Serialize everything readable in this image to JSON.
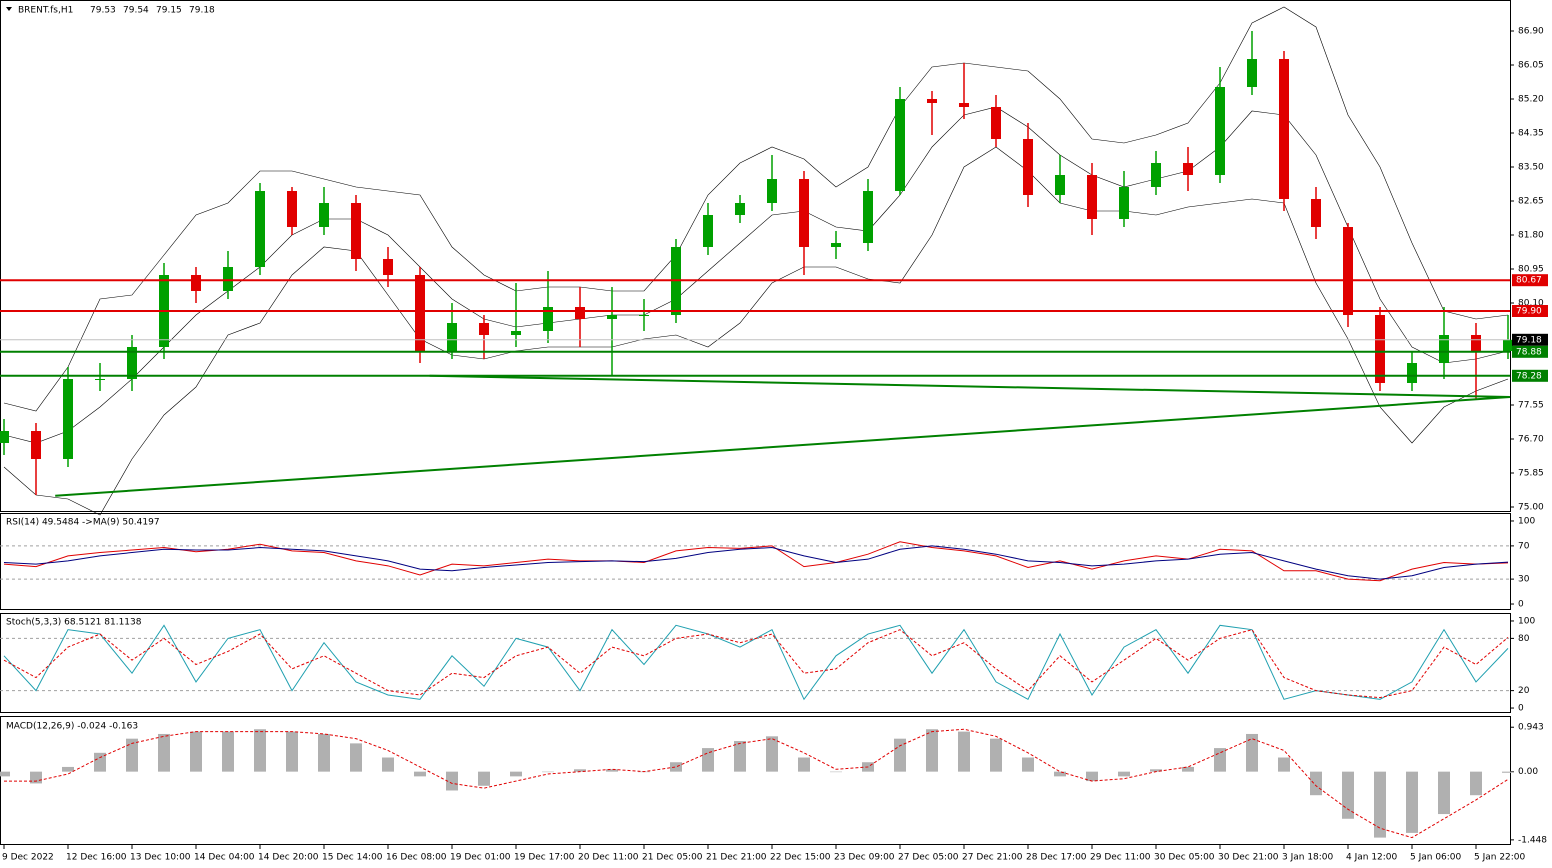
{
  "chart_data": [
    {
      "type": "candlestick",
      "title": "BRENT.fs,H1",
      "header_values": [
        79.53,
        79.54,
        79.15,
        79.18
      ],
      "categories": [
        "9 Dec 2022",
        null,
        "12 Dec 16:00",
        null,
        "13 Dec 10:00",
        null,
        "14 Dec 04:00",
        null,
        "14 Dec 20:00",
        null,
        "15 Dec 14:00",
        null,
        "16 Dec 08:00",
        null,
        "19 Dec 01:00",
        null,
        "19 Dec 17:00",
        null,
        "20 Dec 11:00",
        null,
        "21 Dec 05:00",
        null,
        "21 Dec 21:00",
        null,
        "22 Dec 15:00",
        null,
        "23 Dec 09:00",
        null,
        "27 Dec 05:00",
        null,
        "27 Dec 21:00",
        null,
        "28 Dec 17:00",
        null,
        "29 Dec 11:00",
        null,
        "30 Dec 05:00",
        null,
        "30 Dec 21:00",
        null,
        "3 Jan 18:00",
        null,
        "4 Jan 12:00",
        null,
        "5 Jan 06:00",
        null,
        "5 Jan 22:00",
        null
      ],
      "open": [
        76.6,
        76.9,
        76.2,
        78.2,
        78.2,
        79.0,
        80.8,
        80.4,
        81.0,
        82.9,
        82.0,
        82.6,
        81.2,
        80.8,
        78.9,
        79.6,
        79.3,
        79.4,
        80.0,
        79.7,
        79.8,
        79.8,
        81.5,
        82.3,
        82.6,
        83.2,
        81.5,
        81.6,
        82.9,
        85.2,
        85.1,
        85.0,
        84.2,
        82.8,
        83.3,
        82.2,
        83.0,
        83.6,
        83.3,
        85.5,
        86.2,
        82.7,
        82.0,
        79.8,
        78.1,
        78.6,
        79.3,
        78.9
      ],
      "high": [
        77.2,
        77.1,
        78.5,
        78.6,
        79.3,
        81.1,
        81.0,
        81.4,
        83.1,
        83.0,
        83.0,
        82.8,
        81.5,
        81.0,
        80.1,
        79.8,
        80.6,
        80.9,
        80.5,
        80.5,
        80.2,
        81.7,
        82.6,
        82.8,
        83.8,
        83.4,
        81.9,
        83.2,
        85.5,
        85.4,
        86.1,
        85.3,
        84.6,
        83.8,
        83.6,
        83.4,
        83.9,
        84.0,
        86.0,
        86.9,
        86.4,
        83.0,
        82.1,
        80.0,
        78.9,
        80.0,
        79.6,
        79.8
      ],
      "low": [
        76.3,
        75.3,
        76.0,
        77.9,
        77.9,
        78.7,
        80.1,
        80.2,
        80.8,
        81.8,
        81.8,
        80.9,
        80.5,
        78.6,
        78.7,
        78.7,
        79.0,
        79.1,
        79.0,
        78.3,
        79.4,
        79.6,
        81.3,
        82.1,
        82.4,
        80.8,
        81.2,
        81.4,
        82.8,
        84.3,
        84.7,
        84.0,
        82.5,
        82.6,
        81.8,
        82.0,
        82.8,
        82.9,
        83.1,
        85.3,
        82.4,
        81.7,
        79.5,
        77.9,
        77.9,
        78.2,
        77.7,
        78.7
      ],
      "close": [
        76.9,
        76.2,
        78.2,
        78.2,
        79.0,
        80.8,
        80.4,
        81.0,
        82.9,
        82.0,
        82.6,
        81.2,
        80.8,
        78.9,
        79.6,
        79.3,
        79.4,
        80.0,
        79.7,
        79.8,
        79.8,
        81.5,
        82.3,
        82.6,
        83.2,
        81.5,
        81.6,
        82.9,
        85.2,
        85.1,
        85.0,
        84.2,
        82.8,
        83.3,
        82.2,
        83.0,
        83.6,
        83.3,
        85.5,
        86.2,
        82.7,
        82.0,
        79.8,
        78.1,
        78.6,
        79.3,
        78.9,
        79.18
      ],
      "up_color": "#00a000",
      "down_color": "#e00000",
      "bands": {
        "color": "#000000",
        "upper": [
          77.6,
          77.4,
          78.5,
          80.2,
          80.3,
          81.3,
          82.3,
          82.6,
          83.4,
          83.4,
          83.2,
          83.0,
          82.9,
          82.8,
          81.5,
          80.8,
          80.4,
          80.5,
          80.5,
          80.4,
          80.4,
          81.3,
          82.8,
          83.6,
          84.0,
          83.7,
          83.0,
          83.5,
          85.0,
          86.0,
          86.1,
          86.0,
          85.9,
          85.2,
          84.2,
          84.1,
          84.3,
          84.6,
          85.6,
          87.1,
          87.5,
          87.0,
          84.8,
          83.5,
          81.6,
          79.9,
          79.7,
          79.8
        ],
        "middle": [
          76.8,
          76.6,
          76.9,
          77.5,
          78.2,
          79.0,
          79.8,
          80.4,
          81.0,
          81.8,
          82.2,
          82.2,
          81.8,
          81.0,
          80.2,
          79.7,
          79.5,
          79.6,
          79.7,
          79.8,
          79.8,
          80.2,
          80.9,
          81.6,
          82.3,
          82.4,
          82.0,
          81.9,
          82.8,
          84.0,
          84.8,
          85.0,
          84.5,
          83.8,
          83.3,
          83.0,
          83.2,
          83.4,
          84.0,
          84.9,
          84.8,
          83.8,
          82.0,
          80.2,
          79.0,
          78.6,
          78.7,
          78.9
        ],
        "lower": [
          76.0,
          75.3,
          75.2,
          74.8,
          76.2,
          77.3,
          78.0,
          79.3,
          79.6,
          80.8,
          81.5,
          81.4,
          80.3,
          79.2,
          78.8,
          78.7,
          78.9,
          79.0,
          79.0,
          79.0,
          79.2,
          79.3,
          79.0,
          79.6,
          80.6,
          81.0,
          81.0,
          80.7,
          80.6,
          81.8,
          83.5,
          84.0,
          83.4,
          82.6,
          82.4,
          82.4,
          82.3,
          82.5,
          82.6,
          82.7,
          82.6,
          80.6,
          79.2,
          77.5,
          76.6,
          77.5,
          77.9,
          78.2
        ]
      },
      "ylim": [
        74.875,
        87.675
      ],
      "yticks": [
        {
          "value": 86.9,
          "label": "86.90"
        },
        {
          "value": 86.05,
          "label": "86.05"
        },
        {
          "value": 85.2,
          "label": "85.20"
        },
        {
          "value": 84.35,
          "label": "84.35"
        },
        {
          "value": 83.5,
          "label": "83.50"
        },
        {
          "value": 82.65,
          "label": "82.65"
        },
        {
          "value": 81.8,
          "label": "81.80"
        },
        {
          "value": 80.95,
          "label": "80.95"
        },
        {
          "value": 80.1,
          "label": "80.10"
        },
        {
          "value": 77.55,
          "label": "77.55"
        },
        {
          "value": 76.7,
          "label": "76.70"
        },
        {
          "value": 75.85,
          "label": "75.85"
        },
        {
          "value": 75,
          "label": "75.00"
        }
      ],
      "levels": [
        {
          "value": 80.67,
          "label": "80.67",
          "color": "#e00000"
        },
        {
          "value": 79.9,
          "label": "79.90",
          "color": "#e00000"
        },
        {
          "value": 79.18,
          "label": "79.18",
          "color": "#000000"
        },
        {
          "value": 78.88,
          "label": "78.88",
          "color": "#008000"
        },
        {
          "value": 78.28,
          "label": "78.28",
          "color": "#008000"
        }
      ],
      "trendlines": [
        {
          "x": [
            1.6,
            47.06
          ],
          "y": [
            75.28,
            77.75
          ],
          "color": "#008000"
        },
        {
          "x": [
            13.3,
            47.06
          ],
          "y": [
            78.28,
            77.75
          ],
          "color": "#008000"
        }
      ]
    },
    {
      "type": "line",
      "title": "RSI(14) 49.5484 ->MA(9) 50.4197",
      "ylim": [
        -7.2,
        108.4
      ],
      "yticks": [
        100,
        70,
        30,
        0
      ],
      "levels": [
        70,
        30
      ],
      "series": [
        {
          "color": "#e00000",
          "dashed": false,
          "values": [
            48,
            45,
            58,
            62,
            65,
            68,
            63,
            66,
            72,
            64,
            62,
            52,
            46,
            35,
            48,
            46,
            50,
            54,
            52,
            52,
            50,
            64,
            68,
            67,
            70,
            45,
            50,
            60,
            75,
            68,
            64,
            58,
            44,
            52,
            42,
            52,
            58,
            54,
            66,
            64,
            40,
            40,
            30,
            28,
            42,
            50,
            48,
            49.5
          ]
        },
        {
          "color": "#000080",
          "dashed": false,
          "values": [
            50,
            48,
            52,
            58,
            62,
            66,
            65,
            65,
            68,
            66,
            64,
            58,
            52,
            42,
            40,
            44,
            47,
            50,
            51,
            52,
            51,
            55,
            62,
            66,
            68,
            58,
            50,
            54,
            66,
            70,
            66,
            60,
            52,
            50,
            46,
            48,
            52,
            54,
            60,
            62,
            52,
            42,
            34,
            30,
            34,
            44,
            48,
            50.4
          ]
        }
      ]
    },
    {
      "type": "line",
      "title": "Stoch(5,3,3) 68.5121 81.1138",
      "ylim": [
        -5.7,
        108
      ],
      "yticks": [
        100,
        80,
        20,
        0
      ],
      "levels": [
        80,
        20
      ],
      "series": [
        {
          "color": "#20a0b0",
          "dashed": false,
          "values": [
            60,
            20,
            90,
            85,
            40,
            95,
            30,
            80,
            90,
            20,
            75,
            30,
            15,
            10,
            60,
            25,
            80,
            70,
            20,
            90,
            50,
            95,
            85,
            70,
            90,
            10,
            60,
            85,
            95,
            40,
            90,
            30,
            10,
            85,
            15,
            70,
            90,
            40,
            95,
            90,
            10,
            20,
            15,
            10,
            30,
            90,
            30,
            68.5
          ]
        },
        {
          "color": "#e00000",
          "dashed": true,
          "values": [
            55,
            35,
            70,
            85,
            55,
            80,
            50,
            65,
            85,
            45,
            60,
            40,
            20,
            15,
            40,
            35,
            60,
            70,
            40,
            70,
            60,
            80,
            85,
            75,
            85,
            40,
            45,
            75,
            90,
            60,
            75,
            45,
            20,
            60,
            30,
            55,
            80,
            55,
            80,
            90,
            35,
            20,
            15,
            12,
            20,
            70,
            50,
            81.1
          ]
        }
      ]
    },
    {
      "type": "macd",
      "title": "MACD(12,26,9) -0.024 -0.163",
      "ylim": [
        -1.557,
        1.16
      ],
      "yticks": [
        0.943,
        {
          "value": 0,
          "label": "0.00"
        },
        -1.448
      ],
      "histogram": {
        "color": "#b0b0b0",
        "values": [
          -0.1,
          -0.25,
          0.1,
          0.4,
          0.7,
          0.8,
          0.85,
          0.85,
          0.9,
          0.85,
          0.8,
          0.6,
          0.3,
          -0.1,
          -0.4,
          -0.3,
          -0.1,
          0.0,
          0.05,
          0.05,
          0.0,
          0.2,
          0.5,
          0.65,
          0.75,
          0.3,
          0.0,
          0.2,
          0.7,
          0.9,
          0.85,
          0.7,
          0.3,
          -0.1,
          -0.2,
          -0.1,
          0.05,
          0.1,
          0.5,
          0.8,
          0.3,
          -0.5,
          -1.0,
          -1.4,
          -1.3,
          -0.9,
          -0.5,
          -0.024
        ]
      },
      "signal": {
        "color": "#e00000",
        "values": [
          -0.2,
          -0.2,
          -0.05,
          0.3,
          0.6,
          0.75,
          0.85,
          0.85,
          0.85,
          0.85,
          0.8,
          0.7,
          0.45,
          0.1,
          -0.25,
          -0.35,
          -0.2,
          -0.05,
          0.0,
          0.05,
          0.0,
          0.1,
          0.4,
          0.6,
          0.7,
          0.4,
          0.05,
          0.1,
          0.55,
          0.85,
          0.9,
          0.75,
          0.4,
          0.0,
          -0.2,
          -0.15,
          0.0,
          0.1,
          0.4,
          0.7,
          0.45,
          -0.3,
          -0.8,
          -1.2,
          -1.4,
          -1.0,
          -0.6,
          -0.163
        ]
      }
    }
  ]
}
